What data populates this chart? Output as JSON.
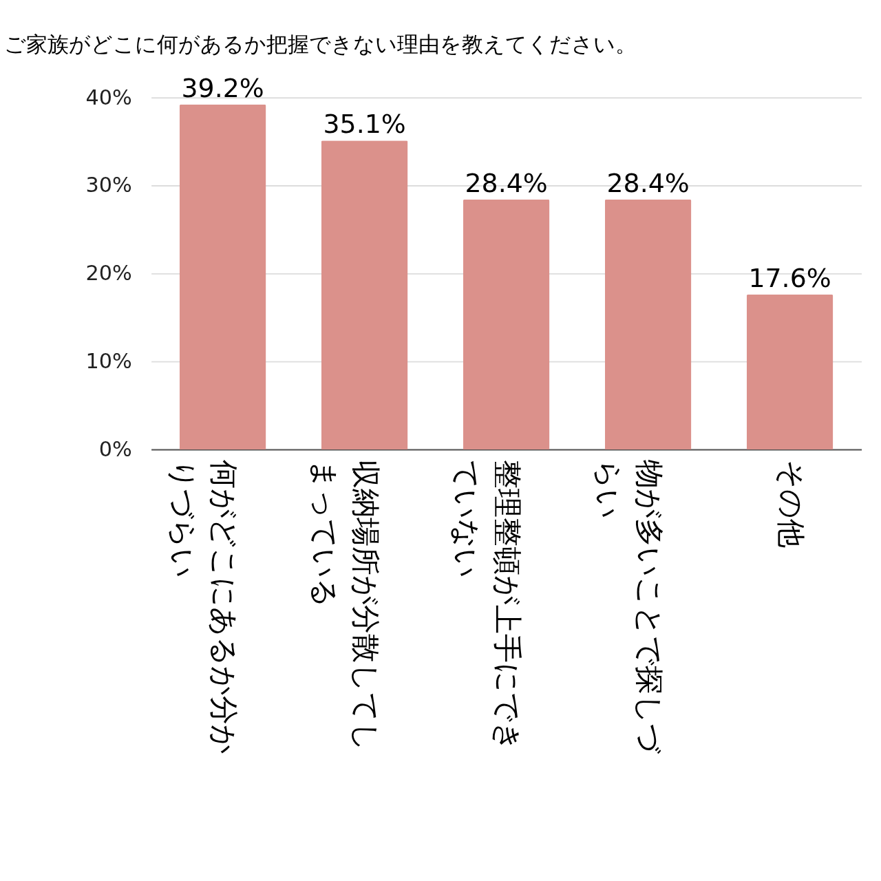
{
  "chart_data": {
    "type": "bar",
    "title": "ご家族がどこに何があるか把握できない理由を教えてください。",
    "categories": [
      "何がどこにあるか分かりづらい",
      "収納場所が分散してしまっている",
      "整理整頓が上手にできていない",
      "物が多いことで探しづらい",
      "その他"
    ],
    "values": [
      39.2,
      35.1,
      28.4,
      28.4,
      17.6
    ],
    "value_labels": [
      "39.2%",
      "35.1%",
      "28.4%",
      "28.4%",
      "17.6%"
    ],
    "color": "#db918b",
    "ylim": [
      0,
      40
    ],
    "yticks": [
      {
        "value": 0,
        "label": "0%"
      },
      {
        "value": 10,
        "label": "10%"
      },
      {
        "value": 20,
        "label": "20%"
      },
      {
        "value": 30,
        "label": "30%"
      },
      {
        "value": 40,
        "label": "40%"
      }
    ],
    "grid": "y"
  }
}
